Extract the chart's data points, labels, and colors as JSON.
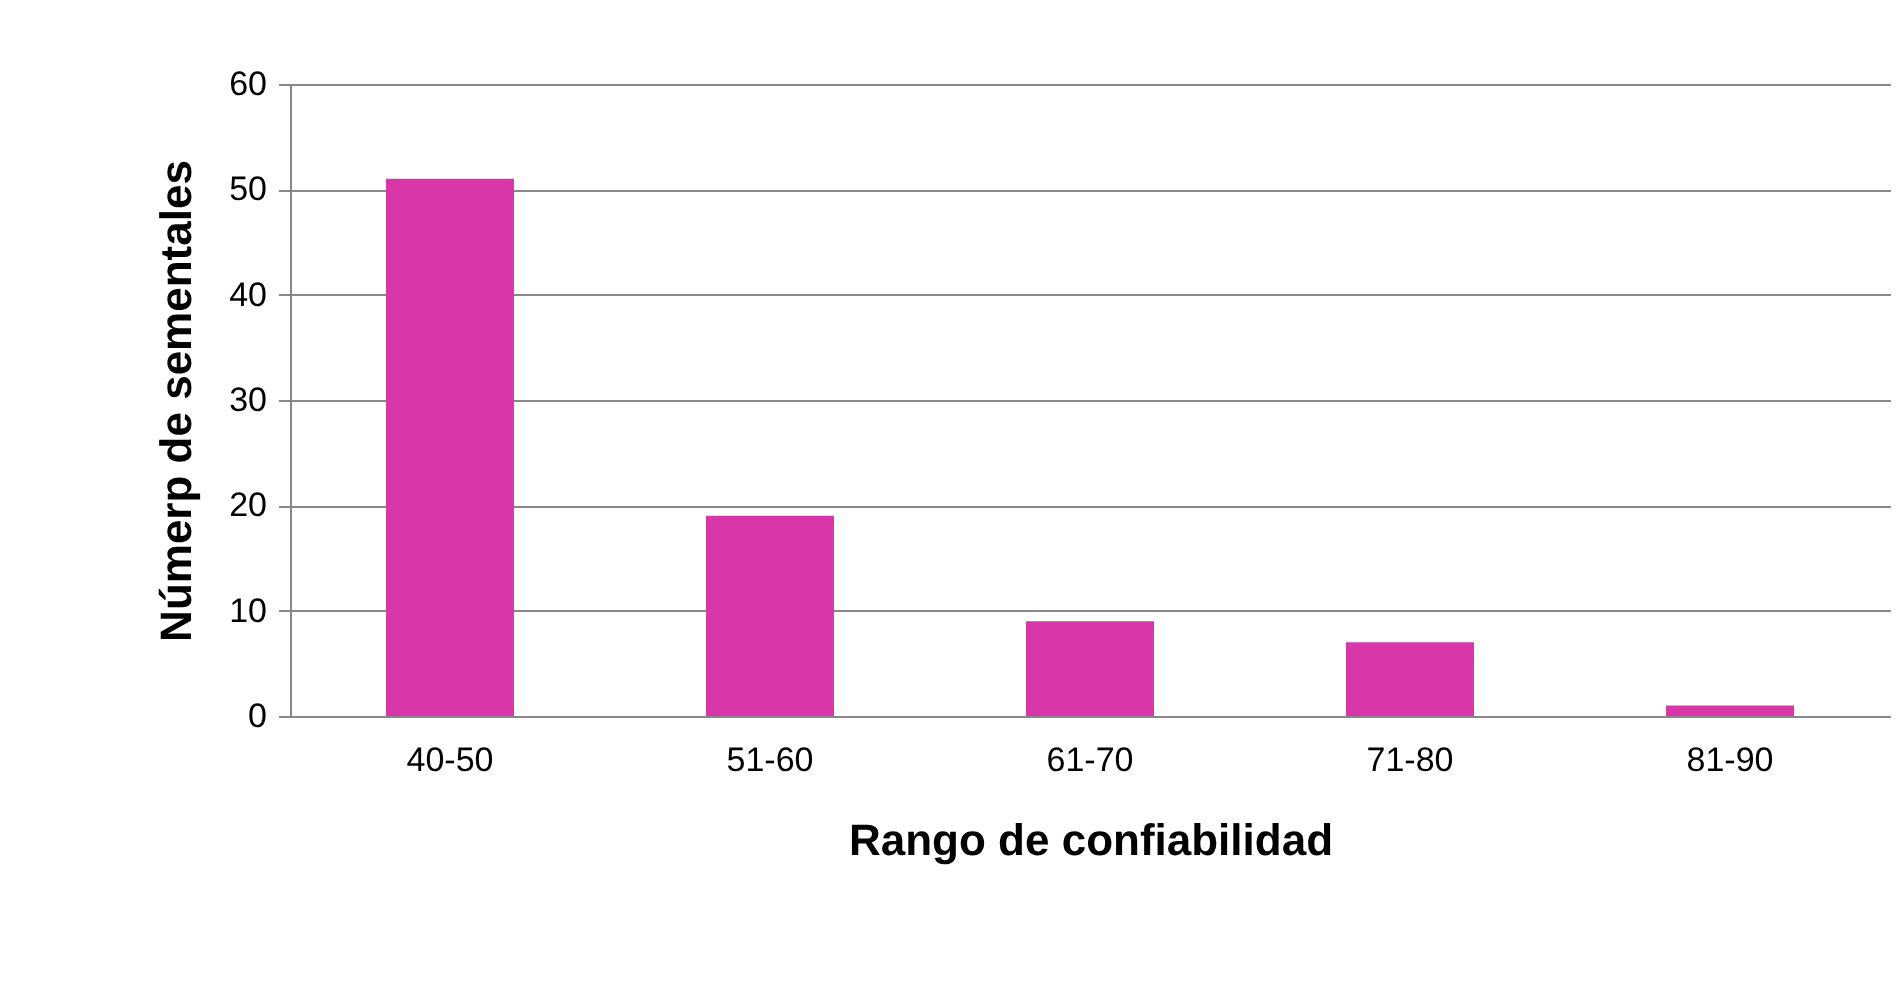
{
  "chart_data": {
    "type": "bar",
    "xlabel": "Rango de confiabilidad",
    "ylabel": "Númerp de sementales",
    "categories": [
      "40-50",
      "51-60",
      "61-70",
      "71-80",
      "81-90"
    ],
    "values": [
      51,
      19,
      9,
      7,
      1
    ],
    "color": "#d936aa",
    "ylim": [
      0,
      60
    ],
    "yticks": [
      0,
      10,
      20,
      30,
      40,
      50,
      60
    ],
    "grid": "y"
  }
}
